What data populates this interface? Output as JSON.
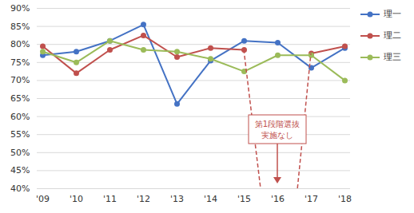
{
  "chart_data": {
    "type": "line",
    "categories": [
      "'09",
      "'10",
      "'11",
      "'12",
      "'13",
      "'14",
      "'15",
      "'16",
      "'17",
      "'18"
    ],
    "series": [
      {
        "name": "理一",
        "color": "#4472c4",
        "marker": "circle",
        "values": [
          77,
          78,
          81,
          85.5,
          63.5,
          75.5,
          81,
          80.5,
          73.5,
          79
        ]
      },
      {
        "name": "理二",
        "color": "#c0504d",
        "marker": "circle",
        "values": [
          79.5,
          72,
          78.5,
          82.5,
          76.5,
          79,
          78.5,
          null,
          77.5,
          79.5
        ]
      },
      {
        "name": "理三",
        "color": "#9bbb59",
        "marker": "circle",
        "values": [
          78,
          75,
          81,
          78.5,
          78,
          76,
          72.5,
          77,
          77,
          70
        ]
      }
    ],
    "ylim": [
      40,
      90
    ],
    "yticks": [
      {
        "value": 40,
        "label": "40%"
      },
      {
        "value": 45,
        "label": "45%"
      },
      {
        "value": 50,
        "label": "50%"
      },
      {
        "value": 55,
        "label": "55%"
      },
      {
        "value": 60,
        "label": "60%"
      },
      {
        "value": 65,
        "label": "65%"
      },
      {
        "value": 70,
        "label": "70%"
      },
      {
        "value": 75,
        "label": "75%"
      },
      {
        "value": 80,
        "label": "80%"
      },
      {
        "value": 85,
        "label": "85%"
      },
      {
        "value": 90,
        "label": "90%"
      }
    ],
    "grid": true,
    "legend": "right",
    "annotations": [
      {
        "text": "第1段階選抜\n実施なし",
        "color": "#c0504d"
      }
    ]
  }
}
